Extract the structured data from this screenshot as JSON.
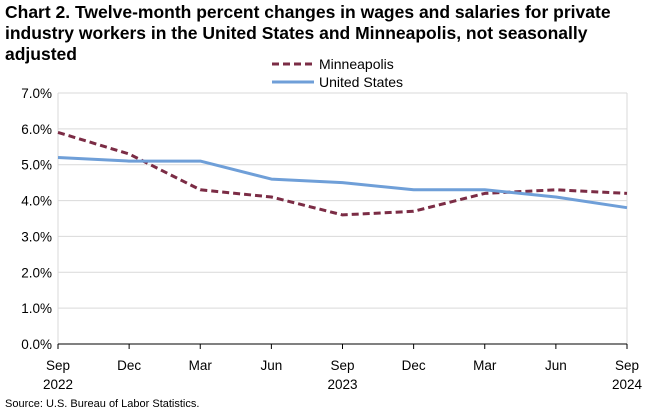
{
  "chart_data": {
    "type": "line",
    "title": "Chart 2. Twelve-month percent changes in wages and salaries for private industry workers in the United States and Minneapolis, not seasonally adjusted",
    "source": "Source: U.S. Bureau of Labor Statistics.",
    "x_labels": [
      "Sep",
      "Dec",
      "Mar",
      "Jun",
      "Sep",
      "Dec",
      "Mar",
      "Jun",
      "Sep"
    ],
    "x_years": [
      "2022",
      "",
      "",
      "",
      "2023",
      "",
      "",
      "",
      "2024"
    ],
    "y_ticks": [
      "0.0%",
      "1.0%",
      "2.0%",
      "3.0%",
      "4.0%",
      "5.0%",
      "6.0%",
      "7.0%"
    ],
    "ylim": [
      0,
      7
    ],
    "grid": true,
    "legend_position": "top-center",
    "series": [
      {
        "name": "Minneapolis",
        "style": "dashed",
        "color": "#7b2c45",
        "values": [
          5.9,
          5.3,
          4.3,
          4.1,
          3.6,
          3.7,
          4.2,
          4.3,
          4.2
        ]
      },
      {
        "name": "United States",
        "style": "solid",
        "color": "#6f9fd8",
        "values": [
          5.2,
          5.1,
          5.1,
          4.6,
          4.5,
          4.3,
          4.3,
          4.1,
          3.8
        ]
      }
    ]
  }
}
